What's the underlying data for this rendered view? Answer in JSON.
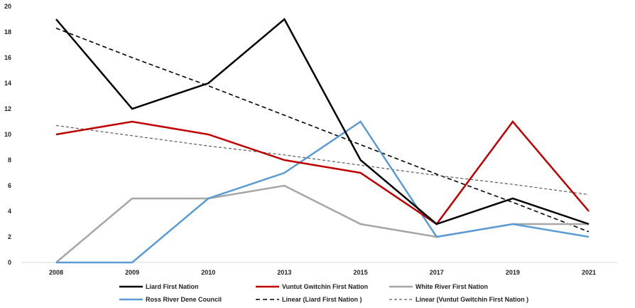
{
  "chart_data": {
    "type": "line",
    "categories": [
      "2008",
      "2009",
      "2010",
      "2013",
      "2015",
      "2017",
      "2019",
      "2021"
    ],
    "ylim": [
      0,
      20
    ],
    "ytick_step": 2,
    "ytick_labels": [
      "0",
      "2",
      "4",
      "6",
      "8",
      "10",
      "12",
      "14",
      "16",
      "18",
      "20"
    ],
    "grid": false,
    "legend_position": "bottom",
    "series": [
      {
        "name": "Liard First Nation",
        "values": [
          19,
          12,
          14,
          19,
          8,
          3,
          5,
          3
        ],
        "color": "#000000",
        "style": "solid"
      },
      {
        "name": "Vuntut Gwitchin First Nation",
        "values": [
          10,
          11,
          10,
          8,
          7,
          3,
          11,
          4
        ],
        "color": "#c00000",
        "style": "solid"
      },
      {
        "name": "White River First Nation",
        "values": [
          0,
          5,
          5,
          6,
          3,
          2,
          3,
          3
        ],
        "color": "#a6a6a6",
        "style": "solid"
      },
      {
        "name": "Ross River Dene Council",
        "values": [
          0,
          0,
          5,
          7,
          11,
          2,
          3,
          2
        ],
        "color": "#5b9bd5",
        "style": "solid"
      },
      {
        "name": "Linear (Liard First Nation )",
        "values": [
          18.3,
          16.0,
          13.8,
          11.5,
          9.2,
          6.9,
          4.7,
          2.4
        ],
        "color": "#000000",
        "style": "dashed"
      },
      {
        "name": "Linear (Vuntut Gwitchin First Nation )",
        "values": [
          10.7,
          9.9,
          9.1,
          8.4,
          7.6,
          6.8,
          6.1,
          5.3
        ],
        "color": "#595959",
        "style": "dashed-thin"
      }
    ]
  }
}
